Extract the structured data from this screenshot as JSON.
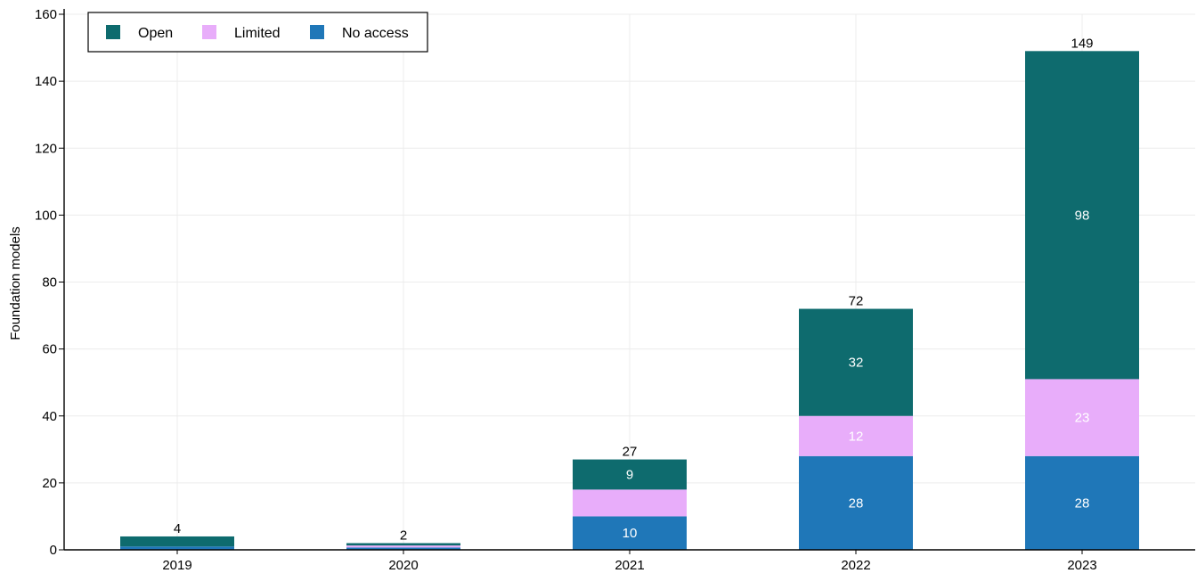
{
  "chart_data": {
    "type": "bar",
    "stacked": true,
    "categories": [
      "2019",
      "2020",
      "2021",
      "2022",
      "2023"
    ],
    "series": [
      {
        "name": "No access",
        "color": "#1f77b8",
        "values": [
          1,
          0.7,
          10,
          28,
          28
        ],
        "labels": [
          "",
          "",
          "10",
          "28",
          "28"
        ]
      },
      {
        "name": "Limited",
        "color": "#e8adfa",
        "values": [
          0,
          0.6,
          8,
          12,
          23
        ],
        "labels": [
          "",
          "",
          "",
          "12",
          "23"
        ]
      },
      {
        "name": "Open",
        "color": "#0e6b6e",
        "values": [
          3,
          0.7,
          9,
          32,
          98
        ],
        "labels": [
          "",
          "",
          "9",
          "32",
          "98"
        ]
      }
    ],
    "totals": [
      4,
      2,
      27,
      72,
      149
    ],
    "xlabel": "",
    "ylabel": "Foundation models",
    "ylim": [
      0,
      160
    ],
    "yticks": [
      0,
      20,
      40,
      60,
      80,
      100,
      120,
      140,
      160
    ],
    "grid": true,
    "legend": {
      "placement": "top-left",
      "order": [
        "Open",
        "Limited",
        "No access"
      ]
    }
  }
}
